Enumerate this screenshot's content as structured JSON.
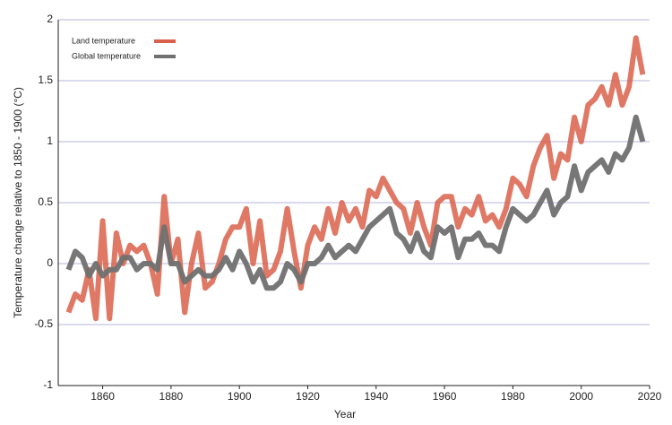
{
  "chart_data": {
    "type": "line",
    "x_label": "Year",
    "y_label": "Temperature change relative to 1850 - 1900 (°C)",
    "x": [
      1850,
      1852,
      1854,
      1856,
      1858,
      1860,
      1862,
      1864,
      1866,
      1868,
      1870,
      1872,
      1874,
      1876,
      1878,
      1880,
      1882,
      1884,
      1886,
      1888,
      1890,
      1892,
      1894,
      1896,
      1898,
      1900,
      1902,
      1904,
      1906,
      1908,
      1910,
      1912,
      1914,
      1916,
      1918,
      1920,
      1922,
      1924,
      1926,
      1928,
      1930,
      1932,
      1934,
      1936,
      1938,
      1940,
      1942,
      1944,
      1946,
      1948,
      1950,
      1952,
      1954,
      1956,
      1958,
      1960,
      1962,
      1964,
      1966,
      1968,
      1970,
      1972,
      1974,
      1976,
      1978,
      1980,
      1982,
      1984,
      1986,
      1988,
      1990,
      1992,
      1994,
      1996,
      1998,
      2000,
      2002,
      2004,
      2006,
      2008,
      2010,
      2012,
      2014,
      2016,
      2018
    ],
    "series": [
      {
        "name": "Land temperature",
        "color": "#d9604a",
        "values": [
          -0.4,
          -0.25,
          -0.3,
          -0.05,
          -0.45,
          0.35,
          -0.45,
          0.25,
          0.0,
          0.15,
          0.1,
          0.15,
          0.0,
          -0.25,
          0.55,
          0.0,
          0.2,
          -0.4,
          0.0,
          0.25,
          -0.2,
          -0.15,
          0.0,
          0.2,
          0.3,
          0.3,
          0.45,
          0.0,
          0.35,
          -0.1,
          -0.05,
          0.1,
          0.45,
          0.1,
          -0.2,
          0.15,
          0.3,
          0.2,
          0.45,
          0.25,
          0.5,
          0.35,
          0.45,
          0.3,
          0.6,
          0.55,
          0.7,
          0.6,
          0.5,
          0.45,
          0.25,
          0.5,
          0.3,
          0.15,
          0.5,
          0.55,
          0.55,
          0.3,
          0.45,
          0.4,
          0.55,
          0.35,
          0.4,
          0.3,
          0.45,
          0.7,
          0.65,
          0.55,
          0.8,
          0.95,
          1.05,
          0.7,
          0.9,
          0.85,
          1.2,
          1.0,
          1.3,
          1.35,
          1.45,
          1.3,
          1.55,
          1.3,
          1.45,
          1.85,
          1.55
        ]
      },
      {
        "name": "Global temperature",
        "color": "#707070",
        "values": [
          -0.05,
          0.1,
          0.05,
          -0.1,
          0.0,
          -0.1,
          -0.05,
          -0.05,
          0.05,
          0.05,
          -0.05,
          0.0,
          0.0,
          -0.05,
          0.3,
          0.0,
          0.0,
          -0.15,
          -0.1,
          -0.05,
          -0.1,
          -0.1,
          -0.05,
          0.05,
          -0.05,
          0.1,
          0.0,
          -0.15,
          -0.05,
          -0.2,
          -0.2,
          -0.15,
          0.0,
          -0.05,
          -0.15,
          0.0,
          0.0,
          0.05,
          0.15,
          0.05,
          0.1,
          0.15,
          0.1,
          0.2,
          0.3,
          0.35,
          0.4,
          0.45,
          0.25,
          0.2,
          0.1,
          0.25,
          0.1,
          0.05,
          0.3,
          0.25,
          0.3,
          0.05,
          0.2,
          0.2,
          0.25,
          0.15,
          0.15,
          0.1,
          0.3,
          0.45,
          0.4,
          0.35,
          0.4,
          0.5,
          0.6,
          0.4,
          0.5,
          0.55,
          0.8,
          0.6,
          0.75,
          0.8,
          0.85,
          0.75,
          0.9,
          0.85,
          0.95,
          1.2,
          1.0
        ]
      }
    ],
    "xlim": [
      1847,
      2020
    ],
    "xticks": [
      1860,
      1880,
      1900,
      1920,
      1940,
      1960,
      1980,
      2000,
      2020
    ],
    "ylim": [
      -1,
      2
    ],
    "yticks": [
      -1,
      -0.5,
      0,
      0.5,
      1,
      1.5,
      2
    ],
    "grid": true,
    "legend": "upper left"
  }
}
